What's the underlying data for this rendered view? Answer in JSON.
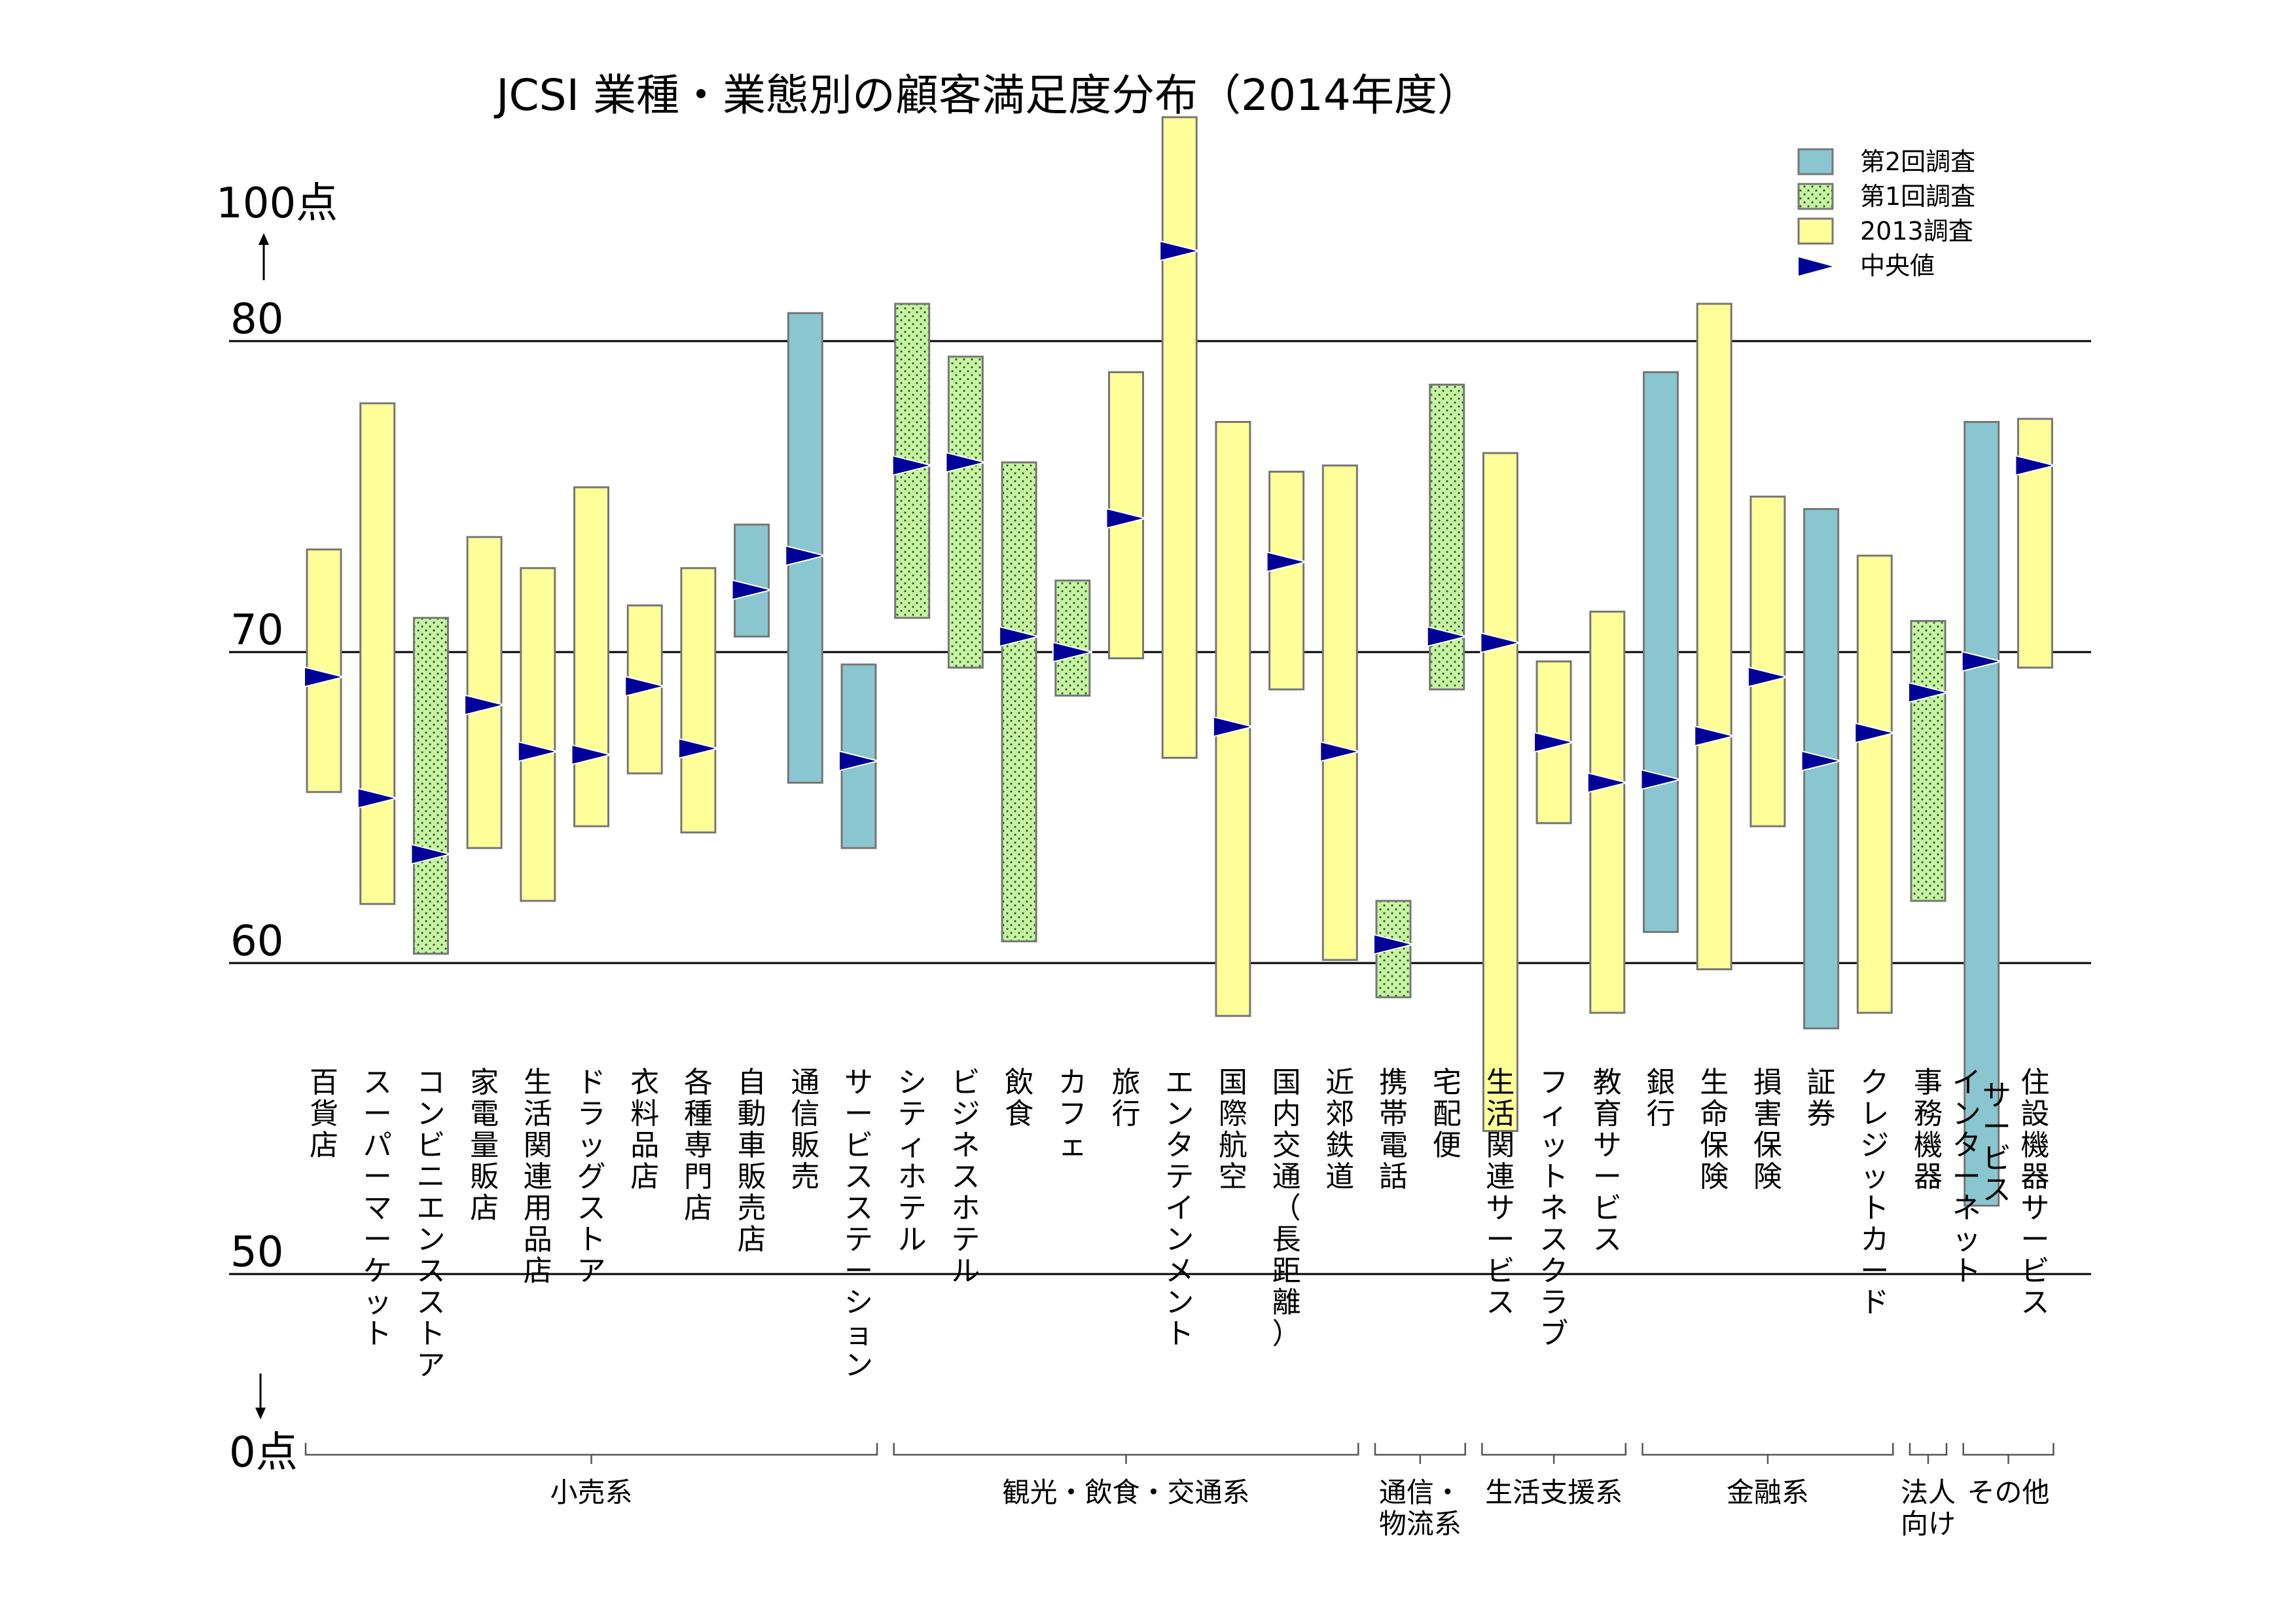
{
  "chart_data": {
    "type": "floating-bar",
    "title": "JCSI 業種・業態別の顧客満足度分布（2014年度）",
    "y_top_label": "100点",
    "y_bottom_label": "0点",
    "yticks": [
      50,
      60,
      70,
      80
    ],
    "ylim": [
      45,
      101
    ],
    "grid": true,
    "legend_position": "top-right",
    "legend": [
      {
        "key": "second",
        "label": "第2回調査",
        "color": "#8ac6cf"
      },
      {
        "key": "first",
        "label": "第1回調査",
        "color": "#c6f5a2"
      },
      {
        "key": "y2013",
        "label": "2013調査",
        "color": "#ffff99"
      },
      {
        "key": "median",
        "label": "中央値",
        "color": "#000099"
      }
    ],
    "series_note": "each bar spans min to max score; triangle marks the median",
    "categories": [
      {
        "lines": [
          "百貨店"
        ],
        "survey": "y2013",
        "min": 65.5,
        "max": 73.3,
        "median": 69.2
      },
      {
        "lines": [
          "スーパーマーケット"
        ],
        "survey": "y2013",
        "min": 61.9,
        "max": 78.0,
        "median": 65.3
      },
      {
        "lines": [
          "コンビニエンスストア"
        ],
        "survey": "first",
        "min": 60.3,
        "max": 71.1,
        "median": 63.5
      },
      {
        "lines": [
          "家電量販店"
        ],
        "survey": "y2013",
        "min": 63.7,
        "max": 73.7,
        "median": 68.3
      },
      {
        "lines": [
          "生活関連用品店"
        ],
        "survey": "y2013",
        "min": 62.0,
        "max": 72.7,
        "median": 66.8
      },
      {
        "lines": [
          "ドラッグストア"
        ],
        "survey": "y2013",
        "min": 64.4,
        "max": 75.3,
        "median": 66.7
      },
      {
        "lines": [
          "衣料品店"
        ],
        "survey": "y2013",
        "min": 66.1,
        "max": 71.5,
        "median": 68.9
      },
      {
        "lines": [
          "各種専門店"
        ],
        "survey": "y2013",
        "min": 64.2,
        "max": 72.7,
        "median": 66.9
      },
      {
        "lines": [
          "自動車販売店"
        ],
        "survey": "second",
        "min": 70.5,
        "max": 74.1,
        "median": 72.0
      },
      {
        "lines": [
          "通信販売"
        ],
        "survey": "second",
        "min": 65.8,
        "max": 80.9,
        "median": 73.1
      },
      {
        "lines": [
          "サービスステーション"
        ],
        "survey": "second",
        "min": 63.7,
        "max": 69.6,
        "median": 66.5
      },
      {
        "lines": [
          "シティホテル"
        ],
        "survey": "first",
        "min": 71.1,
        "max": 81.2,
        "median": 76.0
      },
      {
        "lines": [
          "ビジネスホテル"
        ],
        "survey": "first",
        "min": 69.5,
        "max": 79.5,
        "median": 76.1
      },
      {
        "lines": [
          "飲食"
        ],
        "survey": "first",
        "min": 60.7,
        "max": 76.1,
        "median": 70.5
      },
      {
        "lines": [
          "カフェ"
        ],
        "survey": "first",
        "min": 68.6,
        "max": 72.3,
        "median": 70.0
      },
      {
        "lines": [
          "旅行"
        ],
        "survey": "y2013",
        "min": 69.8,
        "max": 79.0,
        "median": 74.3
      },
      {
        "lines": [
          "エンタテインメント"
        ],
        "survey": "y2013",
        "min": 66.6,
        "max": 87.2,
        "median": 82.9
      },
      {
        "lines": [
          "国際航空"
        ],
        "survey": "y2013",
        "min": 58.3,
        "max": 77.4,
        "median": 67.6
      },
      {
        "lines": [
          "国内交通（長距離）"
        ],
        "survey": "y2013",
        "min": 68.8,
        "max": 75.8,
        "median": 72.9
      },
      {
        "lines": [
          "近郊鉄道"
        ],
        "survey": "y2013",
        "min": 60.1,
        "max": 76.0,
        "median": 66.8
      },
      {
        "lines": [
          "携帯電話"
        ],
        "survey": "first",
        "min": 58.9,
        "max": 62.0,
        "median": 60.6
      },
      {
        "lines": [
          "宅配便"
        ],
        "survey": "first",
        "min": 68.8,
        "max": 78.6,
        "median": 70.5
      },
      {
        "lines": [
          "生活関連サービス"
        ],
        "survey": "y2013",
        "min": 54.6,
        "max": 76.4,
        "median": 70.3
      },
      {
        "lines": [
          "フィットネスクラブ"
        ],
        "survey": "y2013",
        "min": 64.5,
        "max": 69.7,
        "median": 67.1
      },
      {
        "lines": [
          "教育サービス"
        ],
        "survey": "y2013",
        "min": 58.4,
        "max": 71.3,
        "median": 65.8
      },
      {
        "lines": [
          "銀行"
        ],
        "survey": "second",
        "min": 61.0,
        "max": 79.0,
        "median": 65.9
      },
      {
        "lines": [
          "生命保険"
        ],
        "survey": "y2013",
        "min": 59.8,
        "max": 81.2,
        "median": 67.3
      },
      {
        "lines": [
          "損害保険"
        ],
        "survey": "y2013",
        "min": 64.4,
        "max": 75.0,
        "median": 69.2
      },
      {
        "lines": [
          "証券"
        ],
        "survey": "second",
        "min": 57.9,
        "max": 74.6,
        "median": 66.5
      },
      {
        "lines": [
          "クレジットカード"
        ],
        "survey": "y2013",
        "min": 58.4,
        "max": 73.1,
        "median": 67.4
      },
      {
        "lines": [
          "事務機器"
        ],
        "survey": "first",
        "min": 62.0,
        "max": 71.0,
        "median": 68.7
      },
      {
        "lines": [
          "インターネット",
          "サービス"
        ],
        "survey": "second",
        "min": 52.2,
        "max": 77.4,
        "median": 69.7
      },
      {
        "lines": [
          "住設機器サービス"
        ],
        "survey": "y2013",
        "min": 69.5,
        "max": 77.5,
        "median": 76.0
      }
    ],
    "groups": [
      {
        "lines": [
          "小売系"
        ],
        "from": 0,
        "to": 10
      },
      {
        "lines": [
          "観光・飲食・交通系"
        ],
        "from": 11,
        "to": 19
      },
      {
        "lines": [
          "通信・",
          "物流系"
        ],
        "from": 20,
        "to": 21
      },
      {
        "lines": [
          "生活支援系"
        ],
        "from": 22,
        "to": 24
      },
      {
        "lines": [
          "金融系"
        ],
        "from": 25,
        "to": 29
      },
      {
        "lines": [
          "法人",
          "向け"
        ],
        "from": 30,
        "to": 30
      },
      {
        "lines": [
          "その他"
        ],
        "from": 31,
        "to": 32
      }
    ]
  }
}
